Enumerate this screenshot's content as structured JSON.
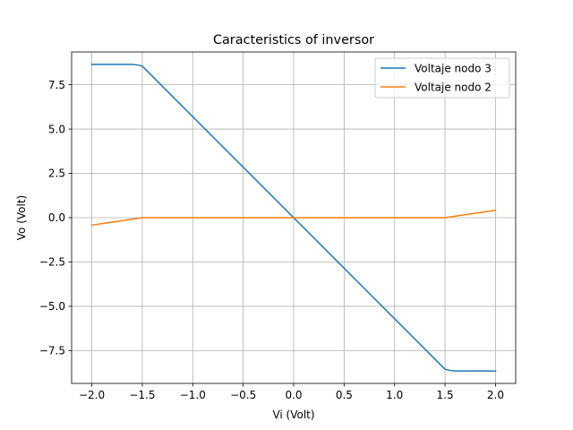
{
  "chart_data": {
    "type": "line",
    "title": "Caracteristics of inversor",
    "xlabel": "Vi (Volt)",
    "ylabel": "Vo (Volt)",
    "xlim": [
      -2.2,
      2.2
    ],
    "ylim": [
      -9.35,
      9.35
    ],
    "x_ticks": [
      -2.0,
      -1.5,
      -1.0,
      -0.5,
      0.0,
      0.5,
      1.0,
      1.5,
      2.0
    ],
    "x_tick_labels": [
      "−2.0",
      "−1.5",
      "−1.0",
      "−0.5",
      "0.0",
      "0.5",
      "1.0",
      "1.5",
      "2.0"
    ],
    "y_ticks": [
      -7.5,
      -5.0,
      -2.5,
      0.0,
      2.5,
      5.0,
      7.5
    ],
    "y_tick_labels": [
      "−7.5",
      "−5.0",
      "−2.5",
      "0.0",
      "2.5",
      "5.0",
      "7.5"
    ],
    "grid": true,
    "legend_position": "top-right",
    "series": [
      {
        "name": "Voltaje nodo 3",
        "color": "#1f77b4",
        "x": [
          -2.0,
          -1.6,
          -1.55,
          -1.5,
          1.5,
          1.55,
          1.6,
          2.0
        ],
        "y": [
          8.65,
          8.65,
          8.62,
          8.55,
          -8.55,
          -8.62,
          -8.65,
          -8.65
        ]
      },
      {
        "name": "Voltaje nodo 2",
        "color": "#ff7f0e",
        "x": [
          -2.0,
          -1.5,
          1.5,
          2.0
        ],
        "y": [
          -0.42,
          0.0,
          0.0,
          0.42
        ]
      }
    ]
  }
}
